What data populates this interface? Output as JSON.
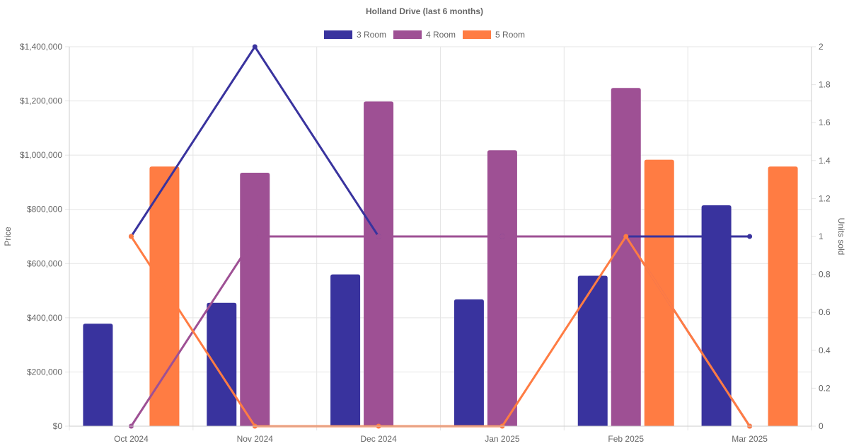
{
  "chart_data": {
    "type": "bar",
    "title": "Holland Drive (last 6 months)",
    "categories": [
      "Oct 2024",
      "Nov 2024",
      "Dec 2024",
      "Jan 2025",
      "Feb 2025",
      "Mar 2025"
    ],
    "y_left": {
      "label": "Price",
      "range": [
        0,
        1400000
      ],
      "ticks": [
        "$0",
        "$200,000",
        "$400,000",
        "$600,000",
        "$800,000",
        "$1,000,000",
        "$1,200,000",
        "$1,400,000"
      ]
    },
    "y_right": {
      "label": "Units sold",
      "range": [
        0,
        2
      ],
      "ticks": [
        "0",
        "0.2",
        "0.4",
        "0.6",
        "0.8",
        "1",
        "1.2",
        "1.4",
        "1.6",
        "1.8",
        "2"
      ]
    },
    "grid": true,
    "legend_position": "top-center",
    "series": [
      {
        "name": "3 Room",
        "color": "#39339e",
        "price": [
          378000,
          455000,
          560000,
          468000,
          555000,
          815000
        ],
        "units_sold": [
          1,
          2,
          1,
          1,
          1,
          1
        ]
      },
      {
        "name": "4 Room",
        "color": "#9e5094",
        "price": [
          0,
          935000,
          1198000,
          1018000,
          1248000,
          0
        ],
        "units_sold": [
          0,
          1,
          1,
          1,
          1,
          0
        ]
      },
      {
        "name": "5 Room",
        "color": "#ff7c43",
        "price": [
          958000,
          0,
          0,
          0,
          983000,
          958000
        ],
        "units_sold": [
          1,
          0,
          0,
          0,
          1,
          0
        ]
      }
    ]
  }
}
